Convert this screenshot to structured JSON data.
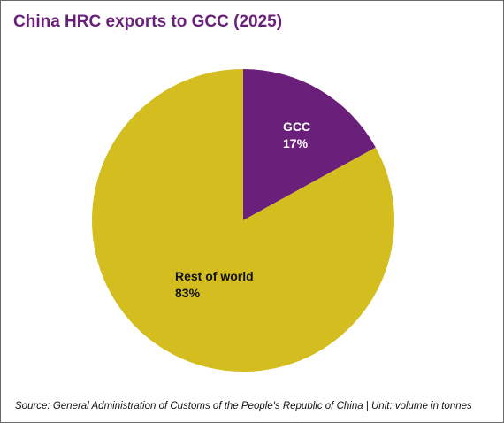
{
  "title": "China HRC exports to GCC (2025)",
  "source_note": "Source: General Administration of Customs of the People's Republic of China | Unit: volume in tonnes",
  "colors": {
    "title": "#6a1f7a",
    "gcc": "#6a1f7a",
    "rest_of_world": "#d4bd1e",
    "slice_label_on_dark": "#ffffff",
    "slice_label_on_light": "#111111"
  },
  "chart_data": {
    "type": "pie",
    "title": "China HRC exports to GCC (2025)",
    "slices": [
      {
        "label": "GCC",
        "value": 17,
        "value_label": "17%",
        "color": "#6a1f7a",
        "text_color": "#ffffff"
      },
      {
        "label": "Rest of world",
        "value": 83,
        "value_label": "83%",
        "color": "#d4bd1e",
        "text_color": "#111111"
      }
    ],
    "start_angle": "12 o'clock",
    "direction": "clockwise",
    "legend": "none",
    "labels": "inside slices"
  }
}
